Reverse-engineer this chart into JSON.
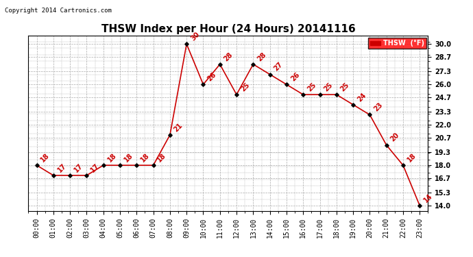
{
  "title": "THSW Index per Hour (24 Hours) 20141116",
  "copyright_text": "Copyright 2014 Cartronics.com",
  "legend_label": "THSW  (°F)",
  "hours": [
    0,
    1,
    2,
    3,
    4,
    5,
    6,
    7,
    8,
    9,
    10,
    11,
    12,
    13,
    14,
    15,
    16,
    17,
    18,
    19,
    20,
    21,
    22,
    23
  ],
  "values": [
    18,
    17,
    17,
    17,
    18,
    18,
    18,
    18,
    21,
    30,
    26,
    28,
    25,
    28,
    27,
    26,
    25,
    25,
    25,
    24,
    23,
    20,
    18,
    14
  ],
  "x_labels": [
    "00:00",
    "01:00",
    "02:00",
    "03:00",
    "04:00",
    "05:00",
    "06:00",
    "07:00",
    "08:00",
    "09:00",
    "10:00",
    "11:00",
    "12:00",
    "13:00",
    "14:00",
    "15:00",
    "16:00",
    "17:00",
    "18:00",
    "19:00",
    "20:00",
    "21:00",
    "22:00",
    "23:00"
  ],
  "y_ticks": [
    14.0,
    15.3,
    16.7,
    18.0,
    19.3,
    20.7,
    22.0,
    23.3,
    24.7,
    26.0,
    27.3,
    28.7,
    30.0
  ],
  "line_color": "#cc0000",
  "marker_color": "#000000",
  "grid_color": "#aaaaaa",
  "background_color": "#ffffff",
  "plot_bg_color": "#ffffff",
  "title_fontsize": 11,
  "tick_fontsize": 7,
  "annotation_fontsize": 7,
  "ylim_min": 13.5,
  "ylim_max": 30.8,
  "xlim_min": -0.5,
  "xlim_max": 23.5
}
